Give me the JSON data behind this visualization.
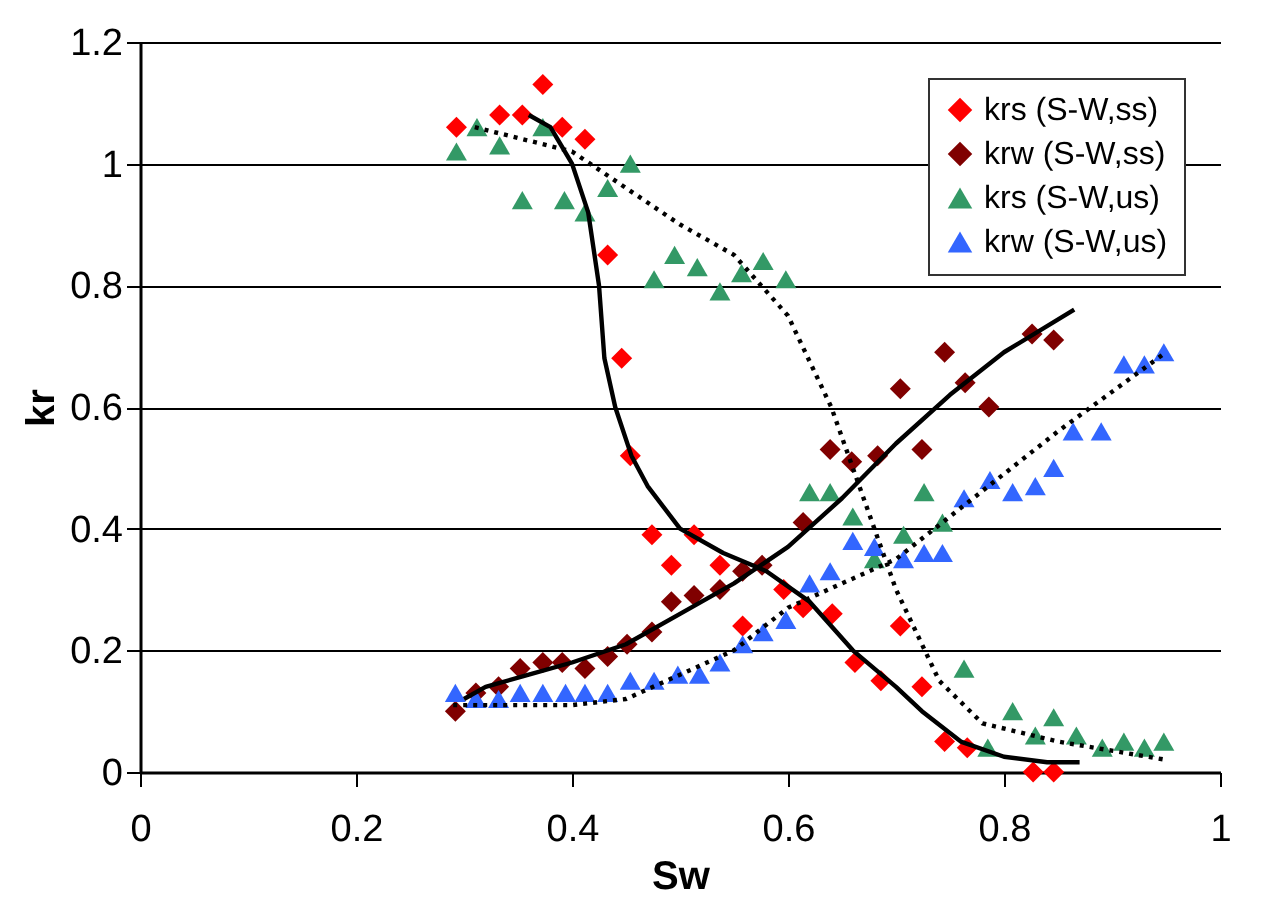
{
  "chart_data": {
    "type": "scatter",
    "xlabel": "Sw",
    "ylabel": "kr",
    "xlim": [
      0,
      1
    ],
    "xticks": [
      0,
      0.2,
      0.4,
      0.6,
      0.8,
      1
    ],
    "ylim": [
      0,
      1.2
    ],
    "yticks": [
      0,
      0.2,
      0.4,
      0.6,
      0.8,
      1,
      1.2
    ],
    "grid": "y",
    "legend": "top right",
    "series": [
      {
        "name": "krs (S-W,ss)",
        "marker": "diamond",
        "color": "#ff0000",
        "x": [
          0.293,
          0.333,
          0.354,
          0.373,
          0.391,
          0.412,
          0.433,
          0.446,
          0.454,
          0.474,
          0.492,
          0.513,
          0.537,
          0.558,
          0.596,
          0.614,
          0.641,
          0.662,
          0.686,
          0.704,
          0.724,
          0.745,
          0.766,
          0.827,
          0.846
        ],
        "values": [
          1.06,
          1.08,
          1.08,
          1.13,
          1.06,
          1.04,
          0.85,
          0.68,
          0.52,
          0.39,
          0.34,
          0.39,
          0.34,
          0.24,
          0.3,
          0.27,
          0.26,
          0.18,
          0.15,
          0.24,
          0.14,
          0.05,
          0.04,
          0.0,
          0.0
        ]
      },
      {
        "name": "krw (S-W,ss)",
        "marker": "diamond",
        "color": "#800000",
        "x": [
          0.292,
          0.311,
          0.332,
          0.352,
          0.373,
          0.391,
          0.412,
          0.433,
          0.451,
          0.474,
          0.492,
          0.513,
          0.537,
          0.558,
          0.576,
          0.614,
          0.639,
          0.659,
          0.683,
          0.704,
          0.724,
          0.745,
          0.764,
          0.786,
          0.826,
          0.846
        ],
        "values": [
          0.1,
          0.13,
          0.14,
          0.17,
          0.18,
          0.18,
          0.17,
          0.19,
          0.21,
          0.23,
          0.28,
          0.29,
          0.3,
          0.33,
          0.34,
          0.41,
          0.53,
          0.51,
          0.52,
          0.63,
          0.53,
          0.69,
          0.64,
          0.6,
          0.72,
          0.71
        ]
      },
      {
        "name": "krs (S-W,us)",
        "marker": "triangle",
        "color": "#339966",
        "x": [
          0.293,
          0.312,
          0.333,
          0.354,
          0.373,
          0.393,
          0.412,
          0.433,
          0.454,
          0.476,
          0.495,
          0.516,
          0.537,
          0.557,
          0.577,
          0.598,
          0.62,
          0.639,
          0.66,
          0.68,
          0.707,
          0.726,
          0.743,
          0.763,
          0.785,
          0.808,
          0.829,
          0.846,
          0.867,
          0.891,
          0.911,
          0.93,
          0.948
        ],
        "values": [
          1.02,
          1.06,
          1.03,
          0.94,
          1.06,
          0.94,
          0.92,
          0.96,
          1.0,
          0.81,
          0.85,
          0.83,
          0.79,
          0.82,
          0.84,
          0.81,
          0.46,
          0.46,
          0.42,
          0.35,
          0.39,
          0.46,
          0.41,
          0.17,
          0.04,
          0.1,
          0.06,
          0.09,
          0.06,
          0.04,
          0.05,
          0.04,
          0.05
        ]
      },
      {
        "name": "krw (S-W,us)",
        "marker": "triangle",
        "color": "#3366ff",
        "x": [
          0.292,
          0.311,
          0.332,
          0.352,
          0.373,
          0.394,
          0.412,
          0.433,
          0.454,
          0.476,
          0.498,
          0.518,
          0.537,
          0.558,
          0.577,
          0.598,
          0.62,
          0.639,
          0.66,
          0.68,
          0.707,
          0.726,
          0.743,
          0.763,
          0.787,
          0.808,
          0.829,
          0.846,
          0.864,
          0.89,
          0.911,
          0.93,
          0.948
        ],
        "values": [
          0.13,
          0.12,
          0.12,
          0.13,
          0.13,
          0.13,
          0.13,
          0.13,
          0.15,
          0.15,
          0.16,
          0.16,
          0.18,
          0.21,
          0.23,
          0.25,
          0.31,
          0.33,
          0.38,
          0.37,
          0.35,
          0.36,
          0.36,
          0.45,
          0.48,
          0.46,
          0.47,
          0.5,
          0.56,
          0.56,
          0.67,
          0.67,
          0.69
        ]
      },
      {
        "type": "line",
        "line_style": "solid",
        "color": "#000000",
        "x": [
          0.36,
          0.38,
          0.4,
          0.415,
          0.425,
          0.43,
          0.44,
          0.455,
          0.47,
          0.5,
          0.54,
          0.58,
          0.62,
          0.66,
          0.7,
          0.724,
          0.76,
          0.8,
          0.84,
          0.87
        ],
        "values": [
          1.08,
          1.06,
          1.0,
          0.92,
          0.8,
          0.68,
          0.6,
          0.52,
          0.47,
          0.4,
          0.36,
          0.33,
          0.28,
          0.2,
          0.14,
          0.1,
          0.05,
          0.025,
          0.016,
          0.016
        ]
      },
      {
        "type": "line",
        "line_style": "solid",
        "color": "#000000",
        "x": [
          0.3,
          0.32,
          0.36,
          0.4,
          0.45,
          0.5,
          0.55,
          0.6,
          0.65,
          0.7,
          0.75,
          0.8,
          0.865
        ],
        "values": [
          0.12,
          0.14,
          0.16,
          0.18,
          0.21,
          0.26,
          0.31,
          0.37,
          0.45,
          0.54,
          0.62,
          0.69,
          0.76
        ]
      },
      {
        "type": "line",
        "line_style": "dotted",
        "color": "#000000",
        "x": [
          0.31,
          0.4,
          0.45,
          0.5,
          0.55,
          0.6,
          0.64,
          0.66,
          0.68,
          0.7,
          0.74,
          0.78,
          0.85,
          0.95
        ],
        "values": [
          1.06,
          1.02,
          0.96,
          0.9,
          0.85,
          0.75,
          0.6,
          0.5,
          0.4,
          0.3,
          0.15,
          0.08,
          0.05,
          0.02
        ]
      },
      {
        "type": "line",
        "line_style": "dotted",
        "color": "#000000",
        "x": [
          0.29,
          0.4,
          0.45,
          0.5,
          0.55,
          0.6,
          0.65,
          0.7,
          0.75,
          0.8,
          0.85,
          0.95
        ],
        "values": [
          0.11,
          0.11,
          0.12,
          0.16,
          0.2,
          0.27,
          0.31,
          0.35,
          0.42,
          0.49,
          0.56,
          0.69
        ]
      }
    ]
  }
}
